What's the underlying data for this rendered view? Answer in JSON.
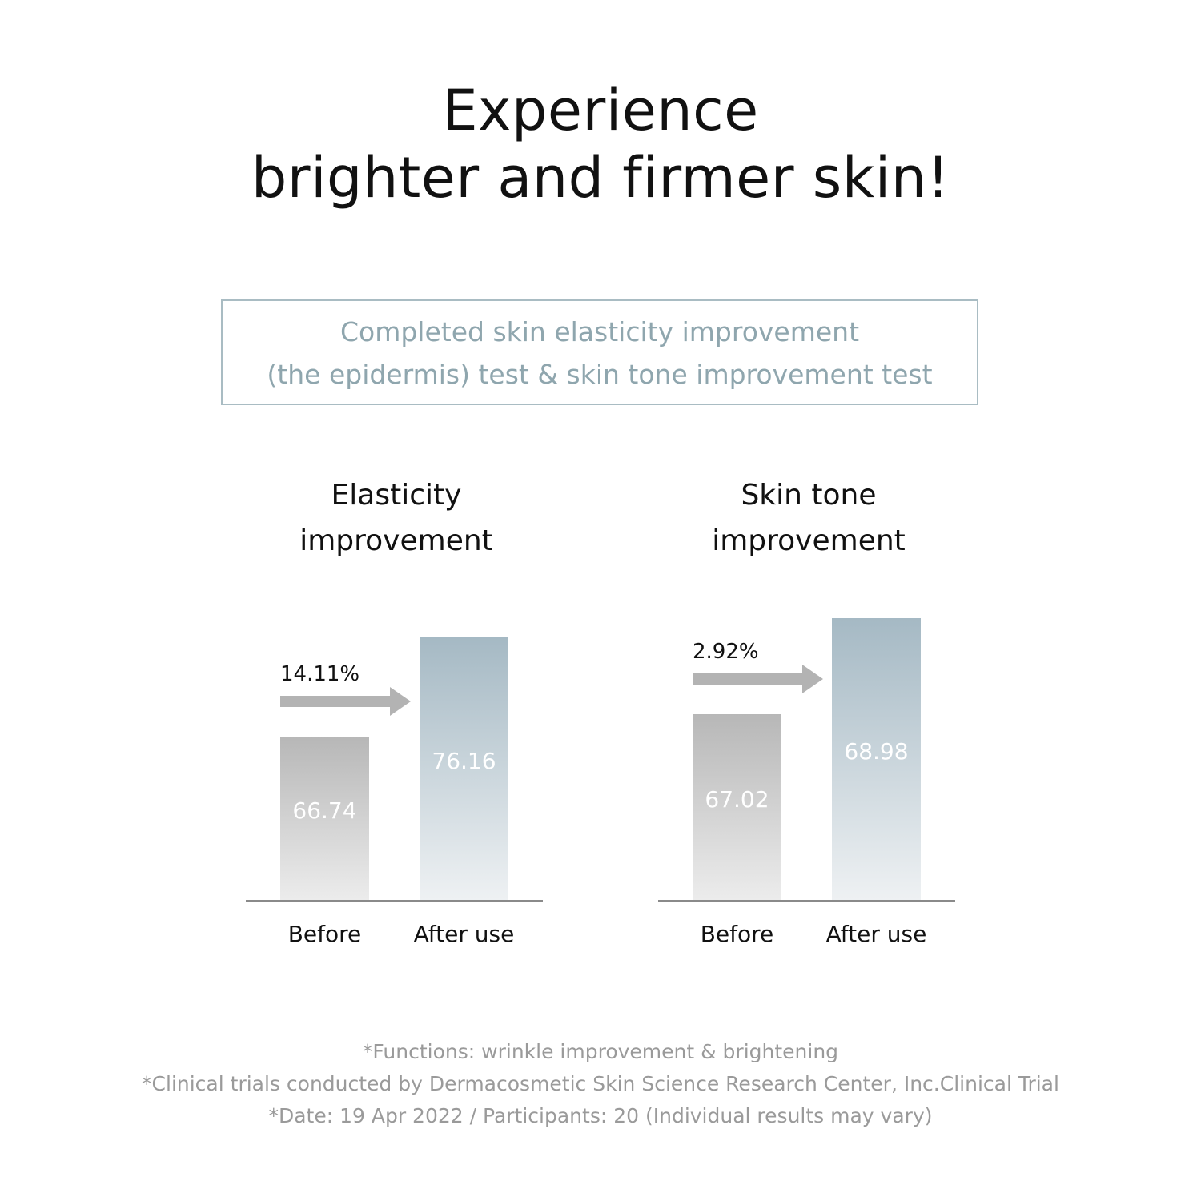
{
  "headline": {
    "line1": "Experience",
    "line2": "brighter and firmer skin!"
  },
  "test_box": {
    "line1": "Completed skin elasticity improvement",
    "line2": "(the epidermis) test & skin tone improvement test"
  },
  "footnotes": [
    "*Functions: wrinkle improvement & brightening",
    "*Clinical trials conducted by Dermacosmetic Skin Science Research Center, Inc.Clinical Trial",
    "*Date: 19 Apr 2022 / Participants: 20 (Individual results may vary)"
  ],
  "colors": {
    "before_bar_top": "#b7b7b7",
    "before_bar_bottom": "#ececec",
    "after_bar_top": "#a5b9c4",
    "after_bar_bottom": "#eef1f3",
    "arrow": "#b3b3b3",
    "value_label": "#ffffff",
    "border": "#a9bcc3"
  },
  "chart_data": [
    {
      "type": "bar",
      "title_lines": [
        "Elasticity",
        "improvement"
      ],
      "categories": [
        "Before",
        "After use"
      ],
      "values": [
        66.74,
        76.16
      ],
      "value_labels": [
        "66.74",
        "76.16"
      ],
      "change_label": "14.11%"
    },
    {
      "type": "bar",
      "title_lines": [
        "Skin tone",
        "improvement"
      ],
      "categories": [
        "Before",
        "After use"
      ],
      "values": [
        67.02,
        68.98
      ],
      "value_labels": [
        "67.02",
        "68.98"
      ],
      "change_label": "2.92%"
    }
  ]
}
